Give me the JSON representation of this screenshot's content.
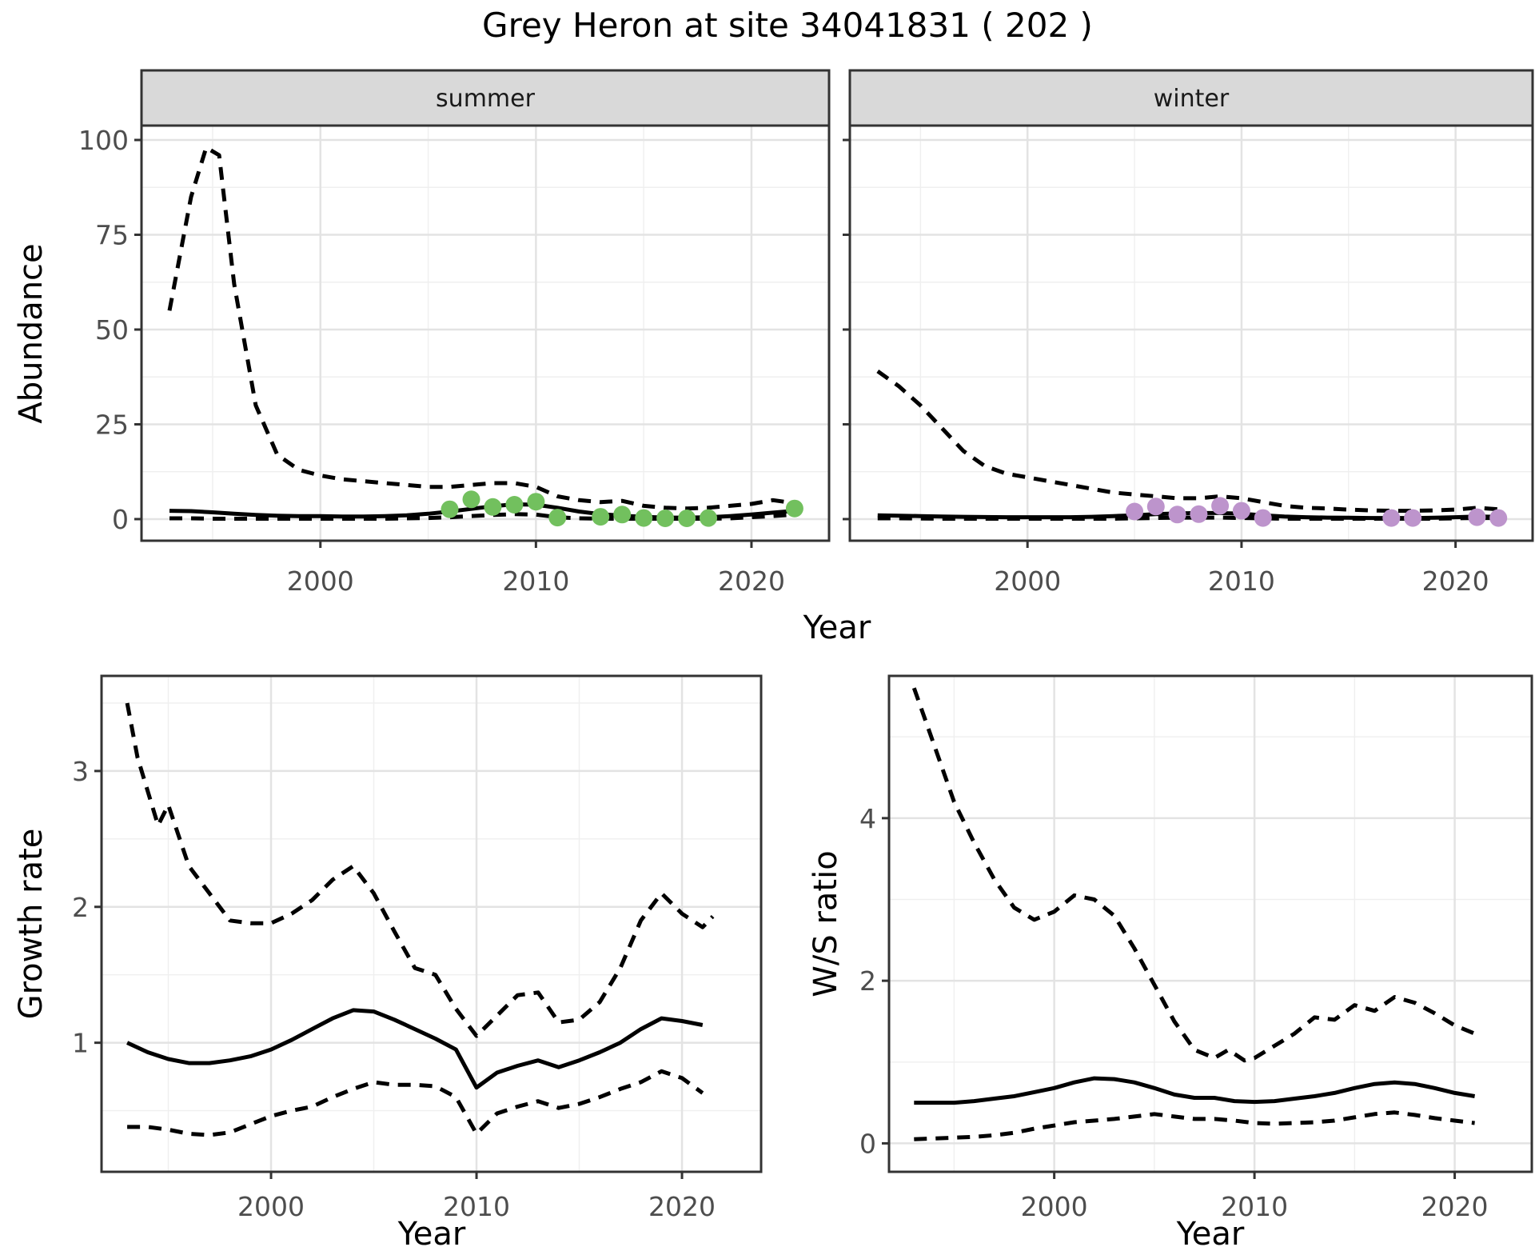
{
  "title": "Grey Heron at site 34041831 ( 202 )",
  "colors": {
    "summer_points": "#72c05e",
    "winter_points": "#bd94cc",
    "line": "#000000",
    "strip_bg": "#d9d9d9",
    "panel_border": "#333333",
    "grid_major": "#e3e3e3",
    "grid_minor": "#efefef",
    "tick_text": "#4d4d4d"
  },
  "chart_data": [
    {
      "id": "abundance-summer",
      "type": "line",
      "facet": "summer",
      "ylabel": "Abundance",
      "xlabel": "Year",
      "xlim": [
        1991.7,
        2023.6
      ],
      "ylim": [
        -5.7,
        103.8
      ],
      "xticks": [
        2000,
        2010,
        2020
      ],
      "yticks": [
        0,
        25,
        50,
        75,
        100
      ],
      "xminor": [
        1995,
        2005,
        2015
      ],
      "yminor": [
        12.5,
        37.5,
        62.5,
        87.5
      ],
      "legend": "none",
      "grid": "on",
      "series": [
        {
          "name": "median",
          "style": "solid",
          "x": [
            1993,
            1994,
            1995,
            1996,
            1997,
            1998,
            1999,
            2000,
            2001,
            2002,
            2003,
            2004,
            2005,
            2006,
            2007,
            2008,
            2009,
            2010,
            2011,
            2012,
            2013,
            2014,
            2015,
            2016,
            2017,
            2018,
            2019,
            2020,
            2021,
            2022
          ],
          "y": [
            2.2,
            2.1,
            1.8,
            1.4,
            1.1,
            0.9,
            0.8,
            0.8,
            0.7,
            0.7,
            0.8,
            1.0,
            1.4,
            2.0,
            2.7,
            3.4,
            3.9,
            3.8,
            3.0,
            2.0,
            1.3,
            0.9,
            0.6,
            0.4,
            0.4,
            0.5,
            0.8,
            1.2,
            1.7,
            2.2
          ]
        },
        {
          "name": "upper-ci",
          "style": "dashed",
          "x": [
            1993,
            1994,
            1994.7,
            1995.3,
            1996,
            1997,
            1998,
            1999,
            2000,
            2001,
            2002,
            2003,
            2004,
            2005,
            2006,
            2007,
            2008,
            2009,
            2010,
            2011,
            2012,
            2013,
            2014,
            2015,
            2016,
            2017,
            2018,
            2019,
            2020,
            2021,
            2022
          ],
          "y": [
            55,
            85,
            98,
            96,
            62,
            30,
            17,
            13,
            11.5,
            10.5,
            10,
            9.5,
            9,
            8.5,
            8.5,
            9,
            9.5,
            9.5,
            8.5,
            6,
            5,
            4.5,
            4.8,
            3.5,
            3,
            2.8,
            3,
            3.5,
            4,
            5,
            4.2
          ]
        },
        {
          "name": "lower-ci",
          "style": "dashed",
          "x": [
            1993,
            1994,
            1995,
            1996,
            1997,
            1998,
            1999,
            2000,
            2001,
            2002,
            2003,
            2004,
            2005,
            2006,
            2007,
            2008,
            2009,
            2010,
            2011,
            2012,
            2013,
            2014,
            2015,
            2016,
            2017,
            2018,
            2019,
            2020,
            2021,
            2022
          ],
          "y": [
            0.2,
            0.2,
            0.1,
            0.1,
            0.1,
            0.1,
            0.1,
            0.1,
            0.1,
            0.1,
            0.1,
            0.2,
            0.3,
            0.5,
            0.8,
            1.1,
            1.3,
            1.2,
            0.5,
            0.2,
            0.1,
            0.1,
            0.1,
            0.1,
            0.1,
            0.1,
            0.2,
            0.5,
            0.8,
            1.2
          ]
        }
      ],
      "points": {
        "name": "observed-summer",
        "color": "#72c05e",
        "x": [
          2006,
          2007,
          2008,
          2009,
          2010,
          2011,
          2013,
          2014,
          2015,
          2016,
          2017,
          2018,
          2022
        ],
        "y": [
          2.6,
          5.2,
          3.2,
          3.8,
          4.6,
          0.4,
          0.6,
          1.2,
          0.3,
          0.2,
          0.2,
          0.3,
          2.8
        ]
      }
    },
    {
      "id": "abundance-winter",
      "type": "line",
      "facet": "winter",
      "ylabel": "Abundance",
      "xlabel": "Year",
      "xlim": [
        1991.7,
        2023.6
      ],
      "ylim": [
        -5.7,
        103.8
      ],
      "xticks": [
        2000,
        2010,
        2020
      ],
      "yticks": [
        0,
        25,
        50,
        75,
        100
      ],
      "xminor": [
        1995,
        2005,
        2015
      ],
      "yminor": [
        12.5,
        37.5,
        62.5,
        87.5
      ],
      "legend": "none",
      "grid": "on",
      "series": [
        {
          "name": "median",
          "style": "solid",
          "x": [
            1993,
            1994,
            1995,
            1996,
            1997,
            1998,
            1999,
            2000,
            2001,
            2002,
            2003,
            2004,
            2005,
            2006,
            2007,
            2008,
            2009,
            2010,
            2011,
            2012,
            2013,
            2014,
            2015,
            2016,
            2017,
            2018,
            2019,
            2020,
            2021,
            2022
          ],
          "y": [
            1.0,
            0.9,
            0.8,
            0.7,
            0.6,
            0.55,
            0.5,
            0.5,
            0.5,
            0.5,
            0.6,
            0.8,
            1.0,
            1.3,
            1.5,
            1.6,
            1.6,
            1.4,
            1.0,
            0.7,
            0.5,
            0.4,
            0.35,
            0.3,
            0.3,
            0.3,
            0.35,
            0.5,
            0.7,
            0.6
          ]
        },
        {
          "name": "upper-ci",
          "style": "dashed",
          "x": [
            1993,
            1994,
            1995,
            1996,
            1997,
            1998,
            1999,
            2000,
            2001,
            2002,
            2003,
            2004,
            2005,
            2006,
            2007,
            2008,
            2009,
            2010,
            2011,
            2012,
            2013,
            2014,
            2015,
            2016,
            2017,
            2018,
            2019,
            2020,
            2021,
            2022
          ],
          "y": [
            39,
            35,
            30,
            24,
            18,
            14,
            12,
            11,
            10,
            9,
            8,
            7,
            6.5,
            6,
            5.5,
            5.5,
            6,
            5.5,
            4.5,
            3.5,
            3,
            2.8,
            2.5,
            2.3,
            2.2,
            2.2,
            2.3,
            2.5,
            3,
            2.6
          ]
        },
        {
          "name": "lower-ci",
          "style": "dashed",
          "x": [
            1993,
            1994,
            1995,
            1996,
            1997,
            1998,
            1999,
            2000,
            2001,
            2002,
            2003,
            2004,
            2005,
            2006,
            2007,
            2008,
            2009,
            2010,
            2011,
            2012,
            2013,
            2014,
            2015,
            2016,
            2017,
            2018,
            2019,
            2020,
            2021,
            2022
          ],
          "y": [
            0.2,
            0.2,
            0.15,
            0.1,
            0.1,
            0.1,
            0.1,
            0.1,
            0.1,
            0.1,
            0.1,
            0.1,
            0.2,
            0.3,
            0.4,
            0.4,
            0.4,
            0.3,
            0.2,
            0.1,
            0.1,
            0.1,
            0.1,
            0.1,
            0.1,
            0.1,
            0.1,
            0.2,
            0.3,
            0.3
          ]
        }
      ],
      "points": {
        "name": "observed-winter",
        "color": "#bd94cc",
        "x": [
          2005,
          2006,
          2007,
          2008,
          2009,
          2010,
          2011,
          2017,
          2018,
          2021,
          2022
        ],
        "y": [
          2.0,
          3.3,
          1.2,
          1.3,
          3.5,
          2.2,
          0.3,
          0.3,
          0.3,
          0.5,
          0.3
        ]
      }
    },
    {
      "id": "growth-rate",
      "type": "line",
      "facet": "",
      "ylabel": "Growth rate",
      "xlabel": "Year",
      "xlim": [
        1991.75,
        2023.85
      ],
      "ylim": [
        0.05,
        3.7
      ],
      "xticks": [
        2000,
        2010,
        2020
      ],
      "yticks": [
        1,
        2,
        3
      ],
      "xminor": [
        1995,
        2005,
        2015
      ],
      "yminor": [
        0.5,
        1.5,
        2.5,
        3.5
      ],
      "legend": "none",
      "grid": "on",
      "series": [
        {
          "name": "median",
          "style": "solid",
          "x": [
            1993,
            1994,
            1995,
            1996,
            1997,
            1998,
            1999,
            2000,
            2001,
            2002,
            2003,
            2004,
            2005,
            2006,
            2007,
            2008,
            2009,
            2010,
            2011,
            2012,
            2013,
            2014,
            2015,
            2016,
            2017,
            2018,
            2019,
            2020,
            2021
          ],
          "y": [
            1.0,
            0.93,
            0.88,
            0.85,
            0.85,
            0.87,
            0.9,
            0.95,
            1.02,
            1.1,
            1.18,
            1.24,
            1.23,
            1.17,
            1.1,
            1.03,
            0.95,
            0.67,
            0.78,
            0.83,
            0.87,
            0.82,
            0.87,
            0.93,
            1.0,
            1.1,
            1.18,
            1.16,
            1.13
          ]
        },
        {
          "name": "upper-ci",
          "style": "dashed",
          "x": [
            1993,
            1993.5,
            1994.5,
            1995,
            1996,
            1997,
            1998,
            1999,
            2000,
            2001,
            2002,
            2003,
            2004,
            2005,
            2006,
            2007,
            2008,
            2009,
            2010,
            2011,
            2012,
            2013,
            2014,
            2015,
            2016,
            2017,
            2018,
            2019,
            2020,
            2021,
            2021.5
          ],
          "y": [
            3.5,
            3.1,
            2.6,
            2.75,
            2.3,
            2.1,
            1.9,
            1.88,
            1.88,
            1.95,
            2.05,
            2.2,
            2.3,
            2.1,
            1.82,
            1.55,
            1.5,
            1.25,
            1.05,
            1.2,
            1.35,
            1.37,
            1.15,
            1.17,
            1.3,
            1.55,
            1.9,
            2.1,
            1.95,
            1.85,
            1.93
          ]
        },
        {
          "name": "lower-ci",
          "style": "dashed",
          "x": [
            1993,
            1994,
            1995,
            1996,
            1997,
            1998,
            1999,
            2000,
            2001,
            2002,
            2003,
            2004,
            2005,
            2006,
            2007,
            2008,
            2009,
            2010,
            2011,
            2012,
            2013,
            2014,
            2015,
            2016,
            2017,
            2018,
            2019,
            2020,
            2021
          ],
          "y": [
            0.38,
            0.38,
            0.36,
            0.33,
            0.32,
            0.34,
            0.4,
            0.46,
            0.5,
            0.53,
            0.6,
            0.66,
            0.71,
            0.69,
            0.69,
            0.68,
            0.6,
            0.33,
            0.48,
            0.53,
            0.57,
            0.52,
            0.55,
            0.6,
            0.66,
            0.71,
            0.79,
            0.74,
            0.63
          ]
        }
      ],
      "points": null
    },
    {
      "id": "ws-ratio",
      "type": "line",
      "facet": "",
      "ylabel": "W/S ratio",
      "xlabel": "Year",
      "xlim": [
        1991.75,
        2023.85
      ],
      "ylim": [
        -0.35,
        5.75
      ],
      "xticks": [
        2000,
        2010,
        2020
      ],
      "yticks": [
        0,
        2,
        4
      ],
      "xminor": [
        1995,
        2005,
        2015
      ],
      "yminor": [
        1,
        3,
        5
      ],
      "legend": "none",
      "grid": "on",
      "series": [
        {
          "name": "median",
          "style": "solid",
          "x": [
            1993,
            1994,
            1995,
            1996,
            1997,
            1998,
            1999,
            2000,
            2001,
            2002,
            2003,
            2004,
            2005,
            2006,
            2007,
            2008,
            2009,
            2010,
            2011,
            2012,
            2013,
            2014,
            2015,
            2016,
            2017,
            2018,
            2019,
            2020,
            2021
          ],
          "y": [
            0.5,
            0.5,
            0.5,
            0.52,
            0.55,
            0.58,
            0.63,
            0.68,
            0.75,
            0.8,
            0.79,
            0.75,
            0.68,
            0.6,
            0.56,
            0.56,
            0.52,
            0.51,
            0.52,
            0.55,
            0.58,
            0.62,
            0.68,
            0.73,
            0.75,
            0.73,
            0.68,
            0.62,
            0.58
          ]
        },
        {
          "name": "upper-ci",
          "style": "dashed",
          "x": [
            1993,
            1994,
            1995,
            1996,
            1997,
            1998,
            1999,
            2000,
            2001,
            2002,
            2003,
            2004,
            2005,
            2006,
            2007,
            2008,
            2008.7,
            2009.5,
            2010,
            2011,
            2012,
            2013,
            2014,
            2015,
            2016,
            2017,
            2018,
            2019,
            2020,
            2021
          ],
          "y": [
            5.6,
            4.9,
            4.2,
            3.7,
            3.25,
            2.9,
            2.75,
            2.85,
            3.05,
            3.0,
            2.8,
            2.4,
            1.95,
            1.5,
            1.15,
            1.05,
            1.15,
            1.02,
            1.05,
            1.2,
            1.35,
            1.55,
            1.52,
            1.7,
            1.63,
            1.8,
            1.73,
            1.6,
            1.45,
            1.35
          ]
        },
        {
          "name": "lower-ci",
          "style": "dashed",
          "x": [
            1993,
            1994,
            1995,
            1996,
            1997,
            1998,
            1999,
            2000,
            2001,
            2002,
            2003,
            2004,
            2005,
            2006,
            2007,
            2008,
            2009,
            2010,
            2011,
            2012,
            2013,
            2014,
            2015,
            2016,
            2017,
            2018,
            2019,
            2020,
            2021
          ],
          "y": [
            0.05,
            0.06,
            0.07,
            0.08,
            0.1,
            0.13,
            0.18,
            0.22,
            0.26,
            0.28,
            0.3,
            0.33,
            0.36,
            0.33,
            0.3,
            0.3,
            0.28,
            0.25,
            0.24,
            0.25,
            0.26,
            0.28,
            0.32,
            0.36,
            0.38,
            0.35,
            0.31,
            0.28,
            0.25
          ]
        }
      ],
      "points": null
    }
  ]
}
